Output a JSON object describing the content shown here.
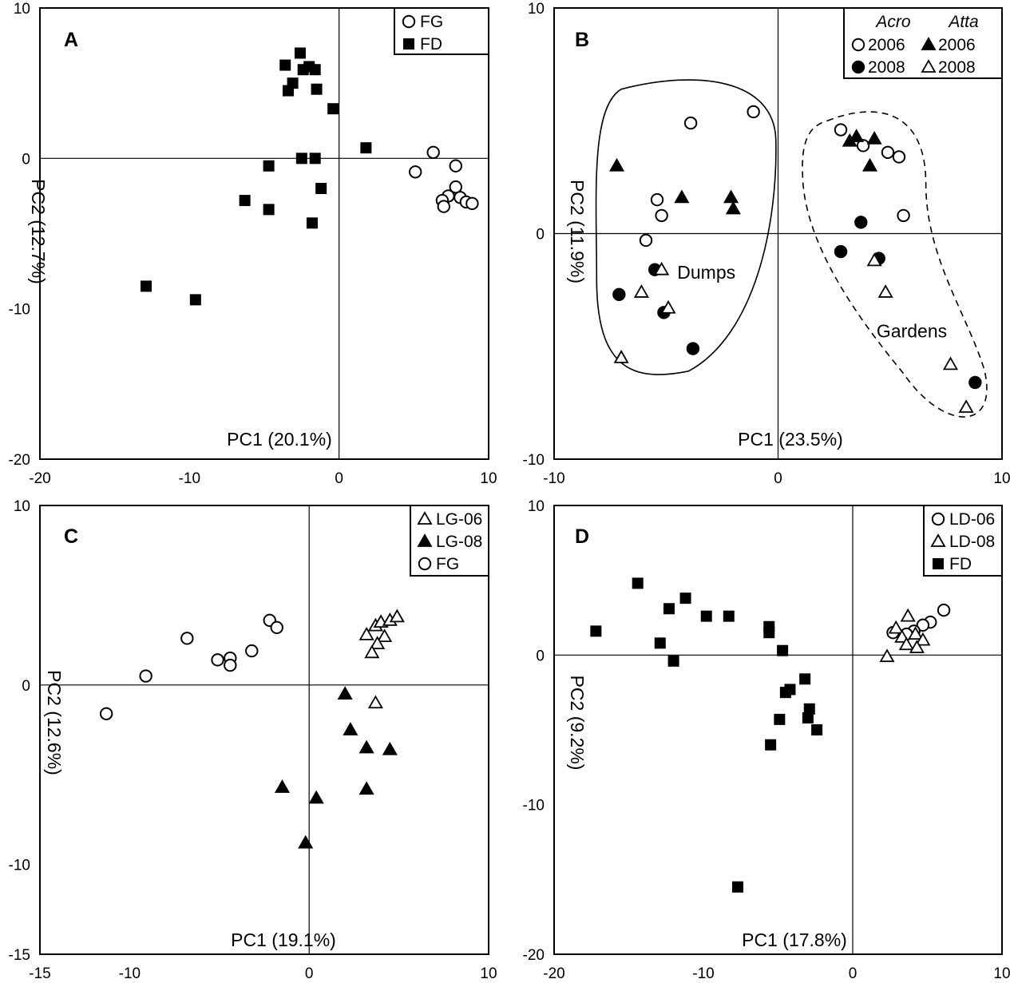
{
  "figure": {
    "panels": [
      "A",
      "B",
      "C",
      "D"
    ]
  },
  "chart_data": [
    {
      "panel": "A",
      "type": "scatter",
      "xlabel": "PC1 (20.1%)",
      "ylabel": "PC2 (12.7%)",
      "xlim": [
        -20,
        10
      ],
      "ylim": [
        -20,
        10
      ],
      "xticks": [
        -20,
        -10,
        0,
        10
      ],
      "yticks": [
        10,
        0,
        -10,
        -20
      ],
      "legend_position": "top-right",
      "series": [
        {
          "name": "FG",
          "marker": "circle-open",
          "points": [
            [
              6.3,
              0.4
            ],
            [
              5.1,
              -0.9
            ],
            [
              7.8,
              -0.5
            ],
            [
              7.8,
              -1.9
            ],
            [
              7.3,
              -2.5
            ],
            [
              6.9,
              -2.8
            ],
            [
              7.0,
              -3.2
            ],
            [
              8.1,
              -2.6
            ],
            [
              8.5,
              -2.9
            ],
            [
              8.9,
              -3.0
            ]
          ]
        },
        {
          "name": "FD",
          "marker": "square-filled",
          "points": [
            [
              -2.6,
              7.0
            ],
            [
              -3.6,
              6.2
            ],
            [
              -2.4,
              5.9
            ],
            [
              -2.0,
              6.1
            ],
            [
              -1.6,
              5.9
            ],
            [
              -3.1,
              5.0
            ],
            [
              -3.4,
              4.5
            ],
            [
              -1.5,
              4.6
            ],
            [
              -0.4,
              3.3
            ],
            [
              1.8,
              0.7
            ],
            [
              -4.7,
              -0.5
            ],
            [
              -2.5,
              0.0
            ],
            [
              -1.6,
              0.0
            ],
            [
              -1.2,
              -2.0
            ],
            [
              -6.3,
              -2.8
            ],
            [
              -4.7,
              -3.4
            ],
            [
              -1.8,
              -4.3
            ],
            [
              -12.9,
              -8.5
            ],
            [
              -9.6,
              -9.4
            ]
          ]
        }
      ]
    },
    {
      "panel": "B",
      "type": "scatter",
      "xlabel": "PC1 (23.5%)",
      "ylabel": "PC2 (11.9%)",
      "xlim": [
        -10,
        10
      ],
      "ylim": [
        -10,
        10
      ],
      "xticks": [
        -10,
        0,
        10
      ],
      "yticks": [
        10,
        0,
        -10
      ],
      "legend_position": "top-right",
      "legend": {
        "headers": [
          "Acro",
          "Atta"
        ]
      },
      "annotations": [
        "Dumps",
        "Gardens"
      ],
      "series": [
        {
          "name": "2006",
          "group": "Acro",
          "marker": "circle-open",
          "points": [
            [
              -3.9,
              4.9
            ],
            [
              -1.1,
              5.4
            ],
            [
              -5.4,
              1.5
            ],
            [
              -5.2,
              0.8
            ],
            [
              -5.9,
              -0.3
            ],
            [
              2.8,
              4.6
            ],
            [
              3.8,
              3.9
            ],
            [
              4.9,
              3.6
            ],
            [
              5.4,
              3.4
            ],
            [
              5.6,
              0.8
            ]
          ]
        },
        {
          "name": "2008",
          "group": "Acro",
          "marker": "circle-filled",
          "points": [
            [
              -5.5,
              -1.6
            ],
            [
              -7.1,
              -2.7
            ],
            [
              -5.1,
              -3.5
            ],
            [
              -3.8,
              -5.1
            ],
            [
              3.7,
              0.5
            ],
            [
              2.8,
              -0.8
            ],
            [
              4.5,
              -1.1
            ],
            [
              8.8,
              -6.6
            ]
          ]
        },
        {
          "name": "2006",
          "group": "Atta",
          "marker": "triangle-filled",
          "points": [
            [
              -7.2,
              3.0
            ],
            [
              -4.3,
              1.6
            ],
            [
              -2.1,
              1.6
            ],
            [
              -2.0,
              1.1
            ],
            [
              3.2,
              4.1
            ],
            [
              3.5,
              4.3
            ],
            [
              4.3,
              4.2
            ],
            [
              4.1,
              3.0
            ]
          ]
        },
        {
          "name": "2008",
          "group": "Atta",
          "marker": "triangle-open",
          "points": [
            [
              -5.2,
              -1.6
            ],
            [
              -6.1,
              -2.6
            ],
            [
              -4.9,
              -3.3
            ],
            [
              -7.0,
              -5.5
            ],
            [
              4.3,
              -1.2
            ],
            [
              4.8,
              -2.6
            ],
            [
              7.7,
              -5.8
            ],
            [
              8.4,
              -7.7
            ]
          ]
        }
      ]
    },
    {
      "panel": "C",
      "type": "scatter",
      "xlabel": "PC1 (19.1%)",
      "ylabel": "PC2 (12.6%)",
      "xlim": [
        -15,
        10
      ],
      "ylim": [
        -15,
        10
      ],
      "xticks": [
        -15,
        -10,
        0,
        10
      ],
      "yticks": [
        10,
        0,
        -10,
        -15
      ],
      "legend_position": "top-right",
      "series": [
        {
          "name": "LG-06",
          "marker": "triangle-open",
          "points": [
            [
              3.2,
              2.8
            ],
            [
              3.7,
              3.3
            ],
            [
              4.0,
              3.5
            ],
            [
              4.5,
              3.6
            ],
            [
              4.9,
              3.8
            ],
            [
              4.2,
              2.7
            ],
            [
              3.8,
              2.3
            ],
            [
              3.5,
              1.8
            ],
            [
              3.7,
              -1.0
            ]
          ]
        },
        {
          "name": "LG-08",
          "marker": "triangle-filled",
          "points": [
            [
              2.0,
              -0.5
            ],
            [
              2.3,
              -2.5
            ],
            [
              3.2,
              -3.5
            ],
            [
              4.5,
              -3.6
            ],
            [
              3.2,
              -5.8
            ],
            [
              -1.5,
              -5.7
            ],
            [
              0.4,
              -6.3
            ],
            [
              -0.2,
              -8.8
            ]
          ]
        },
        {
          "name": "FG",
          "marker": "circle-open",
          "points": [
            [
              -2.2,
              3.6
            ],
            [
              -1.8,
              3.2
            ],
            [
              -3.2,
              1.9
            ],
            [
              -4.4,
              1.5
            ],
            [
              -5.1,
              1.4
            ],
            [
              -4.4,
              1.1
            ],
            [
              -6.8,
              2.6
            ],
            [
              -9.1,
              0.5
            ],
            [
              -11.3,
              -1.6
            ]
          ]
        }
      ]
    },
    {
      "panel": "D",
      "type": "scatter",
      "xlabel": "PC1 (17.8%)",
      "ylabel": "PC2 (9.2%)",
      "xlim": [
        -20,
        10
      ],
      "ylim": [
        -20,
        10
      ],
      "xticks": [
        -20,
        -10,
        0,
        10
      ],
      "yticks": [
        10,
        0,
        -10,
        -20
      ],
      "legend_position": "top-right",
      "series": [
        {
          "name": "LD-06",
          "marker": "circle-open",
          "points": [
            [
              6.1,
              3.0
            ],
            [
              5.2,
              2.2
            ],
            [
              4.7,
              2.0
            ],
            [
              4.1,
              1.6
            ],
            [
              3.6,
              1.4
            ],
            [
              2.7,
              1.5
            ]
          ]
        },
        {
          "name": "LD-08",
          "marker": "triangle-open",
          "points": [
            [
              3.7,
              2.6
            ],
            [
              2.9,
              1.8
            ],
            [
              3.3,
              1.2
            ],
            [
              4.2,
              1.4
            ],
            [
              4.7,
              1.0
            ],
            [
              3.6,
              0.7
            ],
            [
              4.3,
              0.5
            ],
            [
              2.3,
              -0.1
            ]
          ]
        },
        {
          "name": "FD",
          "marker": "square-filled",
          "points": [
            [
              -17.2,
              1.6
            ],
            [
              -14.4,
              4.8
            ],
            [
              -11.2,
              3.8
            ],
            [
              -12.3,
              3.1
            ],
            [
              -9.8,
              2.6
            ],
            [
              -12.9,
              0.8
            ],
            [
              -12.0,
              -0.4
            ],
            [
              -8.3,
              2.6
            ],
            [
              -5.6,
              1.9
            ],
            [
              -5.6,
              1.5
            ],
            [
              -4.7,
              0.3
            ],
            [
              -3.2,
              -1.6
            ],
            [
              -4.5,
              -2.5
            ],
            [
              -4.2,
              -2.3
            ],
            [
              -2.9,
              -3.6
            ],
            [
              -3.0,
              -4.2
            ],
            [
              -2.4,
              -5.0
            ],
            [
              -4.9,
              -4.3
            ],
            [
              -5.5,
              -6.0
            ],
            [
              -7.7,
              -15.5
            ]
          ]
        }
      ]
    }
  ]
}
